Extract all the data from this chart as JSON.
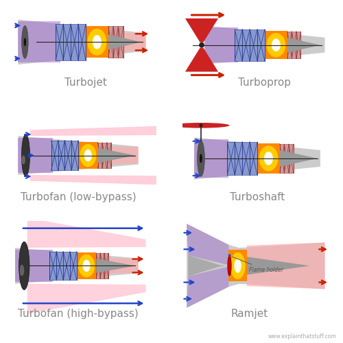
{
  "background": "#ffffff",
  "label_color": "#888888",
  "label_fontsize": 11,
  "labels": [
    "Turbojet",
    "Turboprop",
    "Turbofan (low-bypass)",
    "Turboshaft",
    "Turbofan (high-bypass)",
    "Ramjet"
  ],
  "watermark": "www.explainthatstuff.com",
  "engine_body_color": "#cccccc",
  "engine_body_edge": "none",
  "compressor_fill": "#8899cc",
  "compressor_line": "#223399",
  "turbine_fill": "#cc9999",
  "turbine_line": "#993333",
  "combustor_outer": "#ff8800",
  "combustor_inner": "#ffcc00",
  "combustor_center": "#ffffff",
  "exhaust_pink": "#ffaaaa",
  "intake_purple": "#9966cc",
  "shaft_color": "#222222",
  "disk_color": "#555555",
  "blue_arrow": "#2244cc",
  "red_arrow": "#cc2200",
  "cone_color": "#aaaaaa",
  "bypass_pink": "#ffbbcc",
  "prop_color": "#cc2222",
  "flame_holder_color": "#dd0000"
}
